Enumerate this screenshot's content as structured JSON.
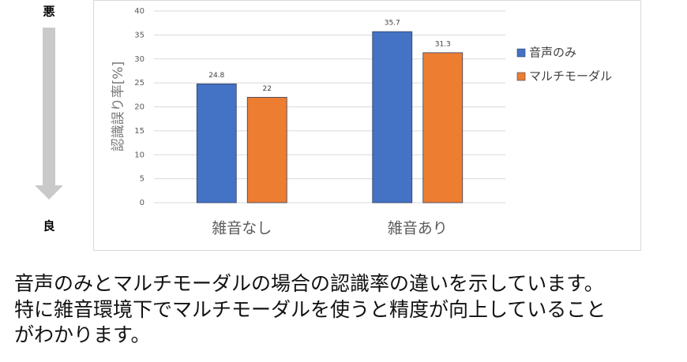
{
  "scale": {
    "top": "悪",
    "bottom": "良"
  },
  "chart_data": {
    "type": "bar",
    "y_label": "認識誤り率[%]",
    "categories": [
      "雑音なし",
      "雑音あり"
    ],
    "series": [
      {
        "name": "音声のみ",
        "color": "#4472c4",
        "values": [
          24.8,
          35.7
        ]
      },
      {
        "name": "マルチモーダル",
        "color": "#ed7d31",
        "values": [
          22,
          31.3
        ]
      }
    ],
    "ylim": [
      0,
      40
    ],
    "yticks": [
      0,
      5,
      10,
      15,
      20,
      25,
      30,
      35,
      40
    ],
    "grid": true,
    "legend": "right"
  },
  "caption": [
    "音声のみとマルチモーダルの場合の認識率の違いを示しています。",
    "特に雑音環境下でマルチモーダルを使うと精度が向上していること",
    "がわかります。"
  ]
}
